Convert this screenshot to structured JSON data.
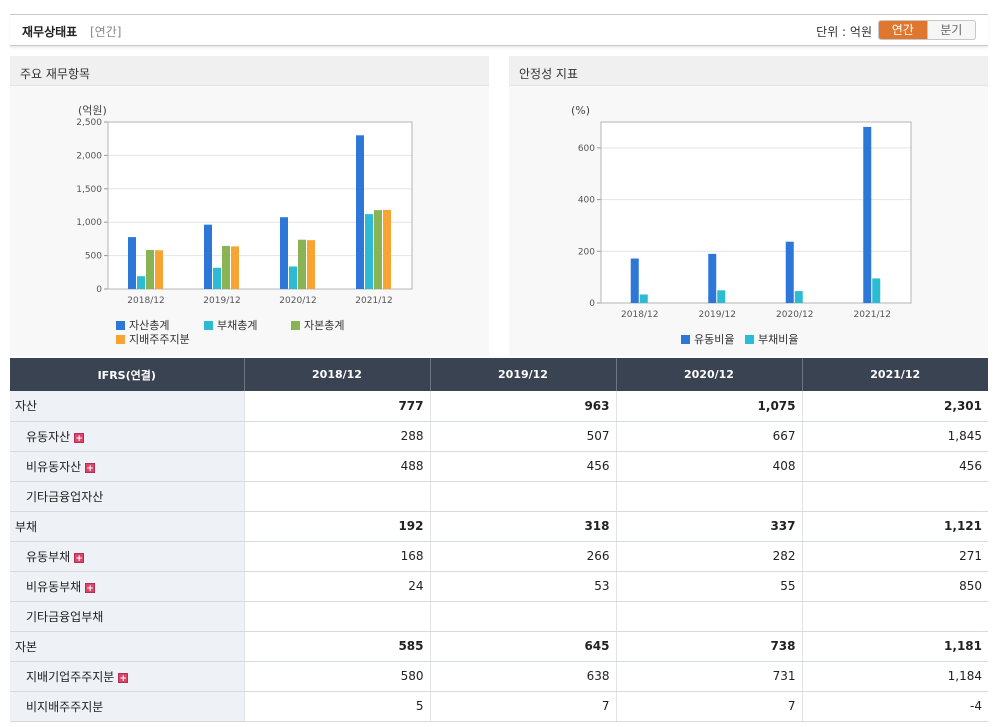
{
  "header": {
    "title": "재무상태표",
    "subtitle": "[연간]",
    "unit_label": "단위 : 억원",
    "toggle_annual": "연간",
    "toggle_quarter": "분기"
  },
  "panels": {
    "left_title": "주요 재무항목",
    "right_title": "안정성 지표"
  },
  "colors": {
    "blue": "#2d77d9",
    "cyan": "#2bbbd3",
    "green": "#8ab454",
    "orange": "#f7a432"
  },
  "chart_data": [
    {
      "type": "bar",
      "ylabel": "(억원)",
      "ylim": [
        0,
        2500
      ],
      "yticks": [
        "0",
        "500",
        "1,000",
        "1,500",
        "2,000",
        "2,500"
      ],
      "categories": [
        "2018/12",
        "2019/12",
        "2020/12",
        "2021/12"
      ],
      "series": [
        {
          "name": "자산총계",
          "color": "#2d77d9",
          "values": [
            777,
            963,
            1075,
            2301
          ]
        },
        {
          "name": "부채총계",
          "color": "#2bbbd3",
          "values": [
            192,
            318,
            337,
            1121
          ]
        },
        {
          "name": "자본총계",
          "color": "#8ab454",
          "values": [
            585,
            645,
            738,
            1181
          ]
        },
        {
          "name": "지배주주지분",
          "color": "#f7a432",
          "values": [
            580,
            638,
            731,
            1184
          ]
        }
      ]
    },
    {
      "type": "bar",
      "ylabel": "(%)",
      "ylim": [
        0,
        700
      ],
      "yticks": [
        "0",
        "200",
        "400",
        "600"
      ],
      "categories": [
        "2018/12",
        "2019/12",
        "2020/12",
        "2021/12"
      ],
      "series": [
        {
          "name": "유동비율",
          "color": "#2d77d9",
          "values": [
            172,
            190,
            237,
            681
          ]
        },
        {
          "name": "부채비율",
          "color": "#2bbbd3",
          "values": [
            33,
            49,
            46,
            95
          ]
        }
      ]
    }
  ],
  "table": {
    "header": [
      "IFRS(연결)",
      "2018/12",
      "2019/12",
      "2020/12",
      "2021/12"
    ],
    "rows": [
      {
        "label": "자산",
        "bold": true,
        "indent": false,
        "plus": false,
        "values": [
          "777",
          "963",
          "1,075",
          "2,301"
        ]
      },
      {
        "label": "유동자산",
        "bold": false,
        "indent": true,
        "plus": true,
        "values": [
          "288",
          "507",
          "667",
          "1,845"
        ]
      },
      {
        "label": "비유동자산",
        "bold": false,
        "indent": true,
        "plus": true,
        "values": [
          "488",
          "456",
          "408",
          "456"
        ]
      },
      {
        "label": "기타금융업자산",
        "bold": false,
        "indent": true,
        "plus": false,
        "values": [
          "",
          "",
          "",
          ""
        ]
      },
      {
        "label": "부채",
        "bold": true,
        "indent": false,
        "plus": false,
        "values": [
          "192",
          "318",
          "337",
          "1,121"
        ]
      },
      {
        "label": "유동부채",
        "bold": false,
        "indent": true,
        "plus": true,
        "values": [
          "168",
          "266",
          "282",
          "271"
        ]
      },
      {
        "label": "비유동부채",
        "bold": false,
        "indent": true,
        "plus": true,
        "values": [
          "24",
          "53",
          "55",
          "850"
        ]
      },
      {
        "label": "기타금융업부채",
        "bold": false,
        "indent": true,
        "plus": false,
        "values": [
          "",
          "",
          "",
          ""
        ]
      },
      {
        "label": "자본",
        "bold": true,
        "indent": false,
        "plus": false,
        "values": [
          "585",
          "645",
          "738",
          "1,181"
        ]
      },
      {
        "label": "지배기업주주지분",
        "bold": false,
        "indent": true,
        "plus": true,
        "values": [
          "580",
          "638",
          "731",
          "1,184"
        ]
      },
      {
        "label": "비지배주주지분",
        "bold": false,
        "indent": true,
        "plus": false,
        "values": [
          "5",
          "7",
          "7",
          "-4"
        ]
      }
    ]
  }
}
